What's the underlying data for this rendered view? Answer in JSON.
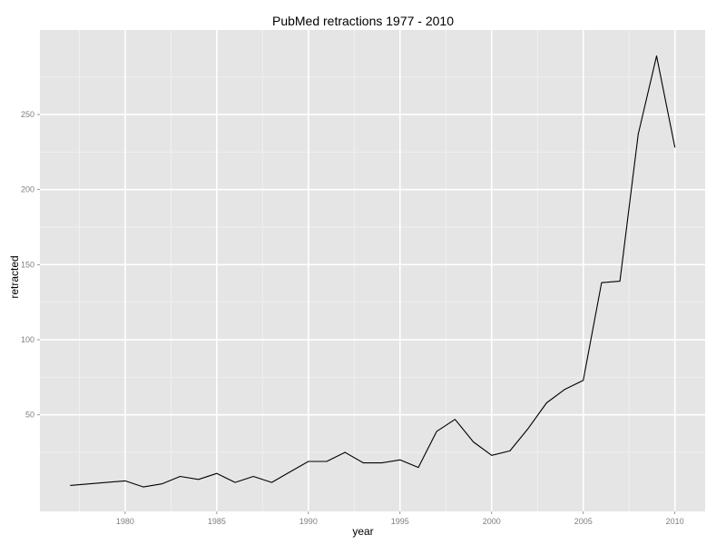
{
  "chart_data": {
    "type": "line",
    "title": "PubMed retractions 1977 - 2010",
    "xlabel": "year",
    "ylabel": "retracted",
    "x": [
      1977,
      1979,
      1980,
      1981,
      1982,
      1983,
      1984,
      1985,
      1986,
      1987,
      1988,
      1989,
      1990,
      1991,
      1992,
      1993,
      1994,
      1995,
      1996,
      1997,
      1998,
      1999,
      2000,
      2001,
      2002,
      2003,
      2004,
      2005,
      2006,
      2007,
      2008,
      2009,
      2010
    ],
    "y": [
      3,
      5,
      6,
      2,
      4,
      9,
      7,
      11,
      5,
      9,
      5,
      12,
      19,
      19,
      25,
      18,
      18,
      20,
      15,
      39,
      47,
      32,
      23,
      26,
      41,
      58,
      67,
      73,
      138,
      139,
      237,
      289,
      228
    ],
    "xlim": [
      1975.35,
      2011.65
    ],
    "ylim": [
      -14.3,
      306.3
    ],
    "x_ticks": [
      "1980",
      "1985",
      "1990",
      "1995",
      "2000",
      "2005",
      "2010"
    ],
    "y_ticks": [
      "50",
      "100",
      "150",
      "200",
      "250"
    ],
    "grid": true,
    "colors": {
      "panel": "#e5e5e5",
      "grid_major": "#ffffff",
      "grid_minor": "#f2f2f2",
      "line": "#000000",
      "tick_text": "#7f7f7f"
    }
  }
}
